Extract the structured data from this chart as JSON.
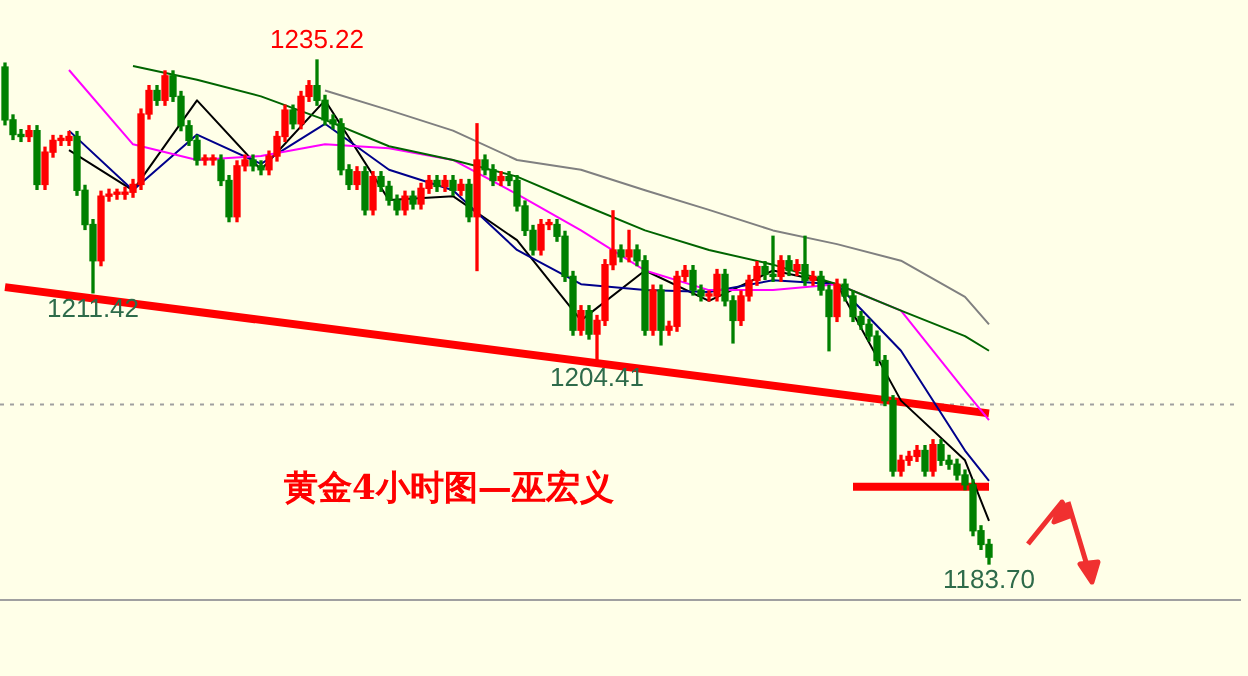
{
  "chart_data": {
    "type": "candlestick",
    "title": "黄金4小时图—巫宏义",
    "categories": [
      null,
      null,
      null,
      null,
      null,
      null,
      null,
      null,
      null,
      null,
      null,
      null,
      null,
      null,
      null,
      null,
      null,
      null,
      null,
      null,
      null,
      null,
      null,
      null,
      null,
      null,
      null,
      null,
      null,
      null,
      null,
      null,
      null,
      null,
      null,
      null,
      null,
      null,
      null,
      null,
      null,
      null,
      null,
      null,
      null,
      null,
      null,
      null,
      null,
      null,
      null,
      null,
      null,
      null,
      null,
      null,
      null,
      null,
      null,
      null,
      null,
      null,
      null,
      null,
      null,
      null,
      null,
      null,
      null,
      null,
      null,
      null,
      null,
      null,
      null,
      null,
      null,
      null,
      null,
      null,
      null,
      null,
      null,
      null,
      null,
      null,
      null,
      null,
      null,
      null,
      null,
      null,
      null,
      null,
      null,
      null,
      null,
      null,
      null,
      null,
      null,
      null,
      null,
      null,
      null,
      null,
      null,
      null,
      null,
      null,
      null,
      null,
      null,
      null,
      null,
      null,
      null,
      null,
      null,
      null,
      null,
      null,
      null,
      null
    ],
    "ohlc": [
      [
        1234.5,
        1234.9,
        1228.6,
        1229.1
      ],
      [
        1229.1,
        1229.6,
        1227.1,
        1227.6
      ],
      [
        1227.6,
        1228.1,
        1226.9,
        1227.4
      ],
      [
        1227.4,
        1228.5,
        1226.9,
        1228.0
      ],
      [
        1228.0,
        1228.5,
        1222.0,
        1222.5
      ],
      [
        1222.5,
        1226.3,
        1222.0,
        1225.8
      ],
      [
        1225.8,
        1227.5,
        1225.3,
        1227.0
      ],
      [
        1227.0,
        1227.5,
        1226.5,
        1227.0
      ],
      [
        1227.0,
        1227.9,
        1226.5,
        1227.4
      ],
      [
        1227.4,
        1227.9,
        1221.4,
        1221.9
      ],
      [
        1221.9,
        1222.4,
        1217.9,
        1218.4
      ],
      [
        1218.4,
        1218.9,
        1211.42,
        1214.7
      ],
      [
        1214.7,
        1221.8,
        1214.2,
        1221.3
      ],
      [
        1221.3,
        1222.0,
        1220.8,
        1221.5
      ],
      [
        1221.5,
        1222.0,
        1221.0,
        1221.5
      ],
      [
        1221.5,
        1222.2,
        1221.0,
        1221.7
      ],
      [
        1221.7,
        1223.0,
        1221.2,
        1222.5
      ],
      [
        1222.5,
        1230.2,
        1222.0,
        1229.7
      ],
      [
        1229.7,
        1232.6,
        1229.2,
        1232.1
      ],
      [
        1232.1,
        1232.6,
        1230.6,
        1231.1
      ],
      [
        1231.1,
        1234.1,
        1230.6,
        1233.6
      ],
      [
        1233.6,
        1234.1,
        1231.0,
        1231.5
      ],
      [
        1231.5,
        1232.0,
        1228.0,
        1228.5
      ],
      [
        1228.5,
        1229.0,
        1226.5,
        1227.0
      ],
      [
        1227.0,
        1227.5,
        1224.5,
        1225.0
      ],
      [
        1225.0,
        1225.5,
        1224.5,
        1225.0
      ],
      [
        1225.0,
        1225.5,
        1224.5,
        1225.0
      ],
      [
        1225.0,
        1225.5,
        1222.4,
        1222.9
      ],
      [
        1222.9,
        1223.4,
        1218.7,
        1219.2
      ],
      [
        1219.2,
        1224.9,
        1218.7,
        1224.4
      ],
      [
        1224.4,
        1225.5,
        1223.9,
        1225.0
      ],
      [
        1225.0,
        1225.5,
        1223.9,
        1224.4
      ],
      [
        1224.4,
        1224.9,
        1223.5,
        1224.0
      ],
      [
        1224.0,
        1225.9,
        1223.5,
        1225.4
      ],
      [
        1225.4,
        1227.9,
        1224.9,
        1227.4
      ],
      [
        1227.4,
        1230.6,
        1226.9,
        1230.1
      ],
      [
        1230.1,
        1230.6,
        1228.2,
        1228.7
      ],
      [
        1228.7,
        1232.0,
        1228.2,
        1231.5
      ],
      [
        1231.5,
        1233.1,
        1231.0,
        1232.6
      ],
      [
        1232.6,
        1235.22,
        1230.6,
        1231.1
      ],
      [
        1231.1,
        1231.6,
        1228.6,
        1229.1
      ],
      [
        1229.1,
        1229.6,
        1228.2,
        1228.7
      ],
      [
        1228.7,
        1229.2,
        1223.5,
        1224.0
      ],
      [
        1224.0,
        1224.5,
        1222.0,
        1222.5
      ],
      [
        1222.5,
        1224.3,
        1222.0,
        1223.8
      ],
      [
        1223.8,
        1224.3,
        1219.4,
        1219.9
      ],
      [
        1219.9,
        1223.8,
        1219.4,
        1223.3
      ],
      [
        1223.3,
        1223.8,
        1221.8,
        1222.3
      ],
      [
        1222.3,
        1222.8,
        1220.4,
        1220.9
      ],
      [
        1220.9,
        1221.4,
        1219.4,
        1219.9
      ],
      [
        1219.9,
        1221.8,
        1219.4,
        1221.3
      ],
      [
        1221.3,
        1221.8,
        1220.0,
        1220.5
      ],
      [
        1220.5,
        1222.6,
        1220.0,
        1222.1
      ],
      [
        1222.1,
        1223.4,
        1221.6,
        1222.9
      ],
      [
        1222.9,
        1223.4,
        1221.8,
        1222.3
      ],
      [
        1222.3,
        1223.4,
        1221.8,
        1222.9
      ],
      [
        1222.9,
        1223.4,
        1221.4,
        1221.9
      ],
      [
        1221.9,
        1223.0,
        1221.4,
        1222.5
      ],
      [
        1222.5,
        1223.0,
        1218.7,
        1219.2
      ],
      [
        1219.2,
        1228.7,
        1213.7,
        1225.0
      ],
      [
        1225.0,
        1225.5,
        1223.5,
        1224.0
      ],
      [
        1224.0,
        1224.5,
        1222.4,
        1222.9
      ],
      [
        1222.9,
        1223.8,
        1222.4,
        1223.3
      ],
      [
        1223.3,
        1223.8,
        1222.4,
        1222.9
      ],
      [
        1222.9,
        1223.4,
        1219.8,
        1220.3
      ],
      [
        1220.3,
        1220.8,
        1217.3,
        1217.8
      ],
      [
        1217.8,
        1218.3,
        1215.3,
        1215.8
      ],
      [
        1215.8,
        1218.9,
        1215.3,
        1218.4
      ],
      [
        1218.4,
        1218.9,
        1217.9,
        1218.4
      ],
      [
        1218.4,
        1218.9,
        1216.7,
        1217.2
      ],
      [
        1217.2,
        1217.7,
        1212.6,
        1213.1
      ],
      [
        1213.1,
        1213.6,
        1207.1,
        1207.6
      ],
      [
        1207.6,
        1210.1,
        1207.1,
        1209.6
      ],
      [
        1209.6,
        1210.1,
        1206.7,
        1207.2
      ],
      [
        1207.2,
        1209.1,
        1204.41,
        1208.6
      ],
      [
        1208.6,
        1214.8,
        1208.1,
        1214.3
      ],
      [
        1214.3,
        1219.8,
        1213.8,
        1215.8
      ],
      [
        1215.8,
        1216.3,
        1214.6,
        1215.1
      ],
      [
        1215.1,
        1217.8,
        1214.6,
        1215.8
      ],
      [
        1215.8,
        1216.3,
        1214.2,
        1214.7
      ],
      [
        1214.7,
        1215.2,
        1207.1,
        1207.6
      ],
      [
        1207.6,
        1212.2,
        1207.1,
        1211.7
      ],
      [
        1211.7,
        1212.2,
        1206.1,
        1207.6
      ],
      [
        1207.6,
        1208.5,
        1207.1,
        1208.0
      ],
      [
        1208.0,
        1213.6,
        1207.5,
        1213.1
      ],
      [
        1213.1,
        1214.2,
        1212.6,
        1213.7
      ],
      [
        1213.7,
        1214.2,
        1211.2,
        1211.7
      ],
      [
        1211.7,
        1212.2,
        1210.6,
        1211.1
      ],
      [
        1211.1,
        1211.6,
        1210.6,
        1211.1
      ],
      [
        1211.1,
        1213.8,
        1210.6,
        1213.3
      ],
      [
        1213.3,
        1213.8,
        1210.1,
        1210.6
      ],
      [
        1210.6,
        1211.1,
        1206.3,
        1208.6
      ],
      [
        1208.6,
        1211.6,
        1208.1,
        1211.1
      ],
      [
        1211.1,
        1213.2,
        1210.6,
        1212.7
      ],
      [
        1212.7,
        1214.6,
        1212.2,
        1214.1
      ],
      [
        1214.1,
        1214.6,
        1212.8,
        1213.3
      ],
      [
        1213.3,
        1217.2,
        1212.6,
        1213.1
      ],
      [
        1213.1,
        1215.2,
        1212.6,
        1214.7
      ],
      [
        1214.7,
        1215.2,
        1213.2,
        1213.7
      ],
      [
        1213.7,
        1214.8,
        1213.2,
        1214.3
      ],
      [
        1214.3,
        1217.2,
        1212.2,
        1212.7
      ],
      [
        1212.7,
        1213.6,
        1212.2,
        1213.1
      ],
      [
        1213.1,
        1213.6,
        1211.2,
        1211.7
      ],
      [
        1211.7,
        1212.2,
        1205.5,
        1209.0
      ],
      [
        1209.0,
        1212.8,
        1208.5,
        1212.3
      ],
      [
        1212.3,
        1212.8,
        1210.6,
        1211.1
      ],
      [
        1211.1,
        1211.6,
        1208.5,
        1209.0
      ],
      [
        1209.0,
        1209.5,
        1207.7,
        1208.2
      ],
      [
        1208.2,
        1208.7,
        1206.5,
        1207.0
      ],
      [
        1207.0,
        1207.5,
        1204.0,
        1204.5
      ],
      [
        1204.5,
        1205.0,
        1199.9,
        1200.4
      ],
      [
        1200.4,
        1200.9,
        1192.7,
        1193.2
      ],
      [
        1193.2,
        1194.8,
        1192.7,
        1194.3
      ],
      [
        1194.3,
        1195.2,
        1193.8,
        1194.7
      ],
      [
        1194.7,
        1195.8,
        1194.2,
        1195.3
      ],
      [
        1195.3,
        1195.8,
        1192.7,
        1193.2
      ],
      [
        1193.2,
        1196.4,
        1192.7,
        1195.9
      ],
      [
        1195.9,
        1196.4,
        1193.8,
        1194.3
      ],
      [
        1194.3,
        1194.8,
        1193.4,
        1193.9
      ],
      [
        1193.9,
        1194.4,
        1192.3,
        1192.8
      ],
      [
        1192.8,
        1193.3,
        1191.3,
        1191.8
      ],
      [
        1191.8,
        1192.3,
        1186.6,
        1187.1
      ],
      [
        1187.1,
        1187.6,
        1185.2,
        1185.7
      ],
      [
        1185.7,
        1186.2,
        1183.7,
        1184.4
      ]
    ],
    "colors": [
      "#008000",
      "#008000",
      "#008000",
      "#ff0000",
      "#008000",
      "#ff0000",
      "#ff0000",
      "#ff0000",
      "#ff0000",
      "#008000",
      "#008000",
      "#008000",
      "#ff0000",
      "#ff0000",
      "#ff0000",
      "#ff0000",
      "#ff0000",
      "#ff0000",
      "#ff0000",
      "#008000",
      "#ff0000",
      "#008000",
      "#008000",
      "#008000",
      "#008000",
      "#ff0000",
      "#ff0000",
      "#008000",
      "#008000",
      "#ff0000",
      "#ff0000",
      "#008000",
      "#008000",
      "#ff0000",
      "#ff0000",
      "#ff0000",
      "#008000",
      "#ff0000",
      "#ff0000",
      "#008000",
      "#008000",
      "#008000",
      "#008000",
      "#008000",
      "#ff0000",
      "#008000",
      "#ff0000",
      "#008000",
      "#008000",
      "#008000",
      "#ff0000",
      "#008000",
      "#ff0000",
      "#ff0000",
      "#008000",
      "#ff0000",
      "#008000",
      "#ff0000",
      "#008000",
      "#ff0000",
      "#008000",
      "#008000",
      "#ff0000",
      "#008000",
      "#008000",
      "#008000",
      "#008000",
      "#ff0000",
      "#ff0000",
      "#008000",
      "#008000",
      "#008000",
      "#ff0000",
      "#008000",
      "#ff0000",
      "#ff0000",
      "#ff0000",
      "#008000",
      "#ff0000",
      "#008000",
      "#008000",
      "#ff0000",
      "#008000",
      "#ff0000",
      "#ff0000",
      "#ff0000",
      "#008000",
      "#008000",
      "#ff0000",
      "#ff0000",
      "#008000",
      "#008000",
      "#ff0000",
      "#ff0000",
      "#ff0000",
      "#008000",
      "#008000",
      "#ff0000",
      "#008000",
      "#ff0000",
      "#008000",
      "#ff0000",
      "#008000",
      "#008000",
      "#ff0000",
      "#008000",
      "#008000",
      "#008000",
      "#008000",
      "#008000",
      "#008000",
      "#008000",
      "#ff0000",
      "#ff0000",
      "#ff0000",
      "#008000",
      "#ff0000",
      "#008000",
      "#008000",
      "#008000",
      "#008000",
      "#008000",
      "#008000",
      "#008000"
    ],
    "series": [
      {
        "type": "line",
        "color": "#808080",
        "values": [
          null,
          null,
          null,
          null,
          null,
          null,
          null,
          null,
          null,
          null,
          null,
          null,
          null,
          null,
          null,
          null,
          null,
          null,
          null,
          null,
          null,
          null,
          null,
          null,
          null,
          null,
          null,
          null,
          null,
          null,
          null,
          null,
          null,
          null,
          null,
          null,
          null,
          null,
          null,
          null,
          1232.1,
          null,
          null,
          null,
          null,
          null,
          null,
          null,
          1230.1,
          null,
          null,
          null,
          null,
          null,
          null,
          null,
          1228.0,
          null,
          null,
          null,
          null,
          null,
          null,
          null,
          1225.0,
          null,
          null,
          null,
          null,
          null,
          null,
          null,
          1224.0,
          null,
          null,
          null,
          null,
          null,
          null,
          null,
          1221.9,
          null,
          null,
          null,
          null,
          null,
          null,
          null,
          1219.9,
          null,
          null,
          null,
          null,
          null,
          null,
          null,
          1217.8,
          null,
          null,
          null,
          null,
          null,
          null,
          null,
          1216.4,
          null,
          null,
          null,
          null,
          null,
          null,
          null,
          1214.7,
          null,
          null,
          null,
          null,
          null,
          null,
          null,
          1211.0,
          null,
          null,
          1208.2
        ]
      },
      {
        "type": "line",
        "color": "#006400",
        "values": [
          null,
          null,
          null,
          null,
          null,
          null,
          null,
          null,
          null,
          null,
          null,
          null,
          null,
          null,
          null,
          null,
          1234.6,
          null,
          null,
          null,
          null,
          null,
          null,
          null,
          1233.2,
          null,
          null,
          null,
          null,
          null,
          null,
          null,
          1231.5,
          null,
          null,
          null,
          null,
          null,
          null,
          null,
          1229.1,
          null,
          null,
          null,
          null,
          null,
          null,
          null,
          1226.4,
          null,
          null,
          null,
          null,
          null,
          null,
          null,
          1225.0,
          null,
          null,
          null,
          null,
          null,
          null,
          null,
          1223.3,
          null,
          null,
          null,
          null,
          null,
          null,
          null,
          1220.5,
          null,
          null,
          null,
          null,
          null,
          null,
          null,
          1217.8,
          null,
          null,
          null,
          null,
          null,
          null,
          null,
          1215.8,
          null,
          null,
          null,
          null,
          null,
          null,
          null,
          1214.3,
          null,
          null,
          null,
          null,
          null,
          null,
          null,
          1212.3,
          null,
          null,
          null,
          null,
          null,
          null,
          null,
          1209.6,
          null,
          null,
          null,
          null,
          null,
          null,
          null,
          1207.0,
          null,
          null,
          1205.5
        ]
      },
      {
        "type": "line",
        "color": "#ff00ff",
        "values": [
          null,
          null,
          null,
          null,
          null,
          null,
          null,
          null,
          1234.2,
          null,
          null,
          null,
          null,
          null,
          null,
          null,
          1226.6,
          null,
          null,
          null,
          null,
          null,
          null,
          null,
          1225.0,
          null,
          null,
          null,
          null,
          null,
          null,
          null,
          1225.4,
          null,
          null,
          null,
          null,
          null,
          null,
          null,
          1226.6,
          null,
          null,
          null,
          null,
          null,
          null,
          null,
          1226.2,
          null,
          null,
          null,
          null,
          null,
          null,
          null,
          1225.0,
          null,
          null,
          null,
          null,
          null,
          null,
          null,
          1221.5,
          null,
          null,
          null,
          null,
          null,
          null,
          null,
          1217.8,
          null,
          null,
          null,
          null,
          null,
          null,
          null,
          1213.7,
          null,
          null,
          null,
          null,
          null,
          null,
          null,
          1211.7,
          null,
          null,
          null,
          null,
          null,
          null,
          null,
          1211.7,
          null,
          null,
          null,
          null,
          null,
          null,
          null,
          1212.3,
          null,
          null,
          null,
          null,
          null,
          null,
          null,
          1209.6,
          null,
          null,
          null,
          null,
          null,
          null,
          null,
          1201.4,
          null,
          null,
          1198.4
        ]
      },
      {
        "type": "line",
        "color": "#00008b",
        "values": [
          null,
          null,
          null,
          null,
          null,
          null,
          null,
          null,
          1228.0,
          null,
          null,
          null,
          null,
          null,
          null,
          null,
          1221.9,
          null,
          null,
          null,
          null,
          null,
          null,
          null,
          1227.6,
          null,
          null,
          null,
          null,
          null,
          null,
          null,
          1224.6,
          null,
          null,
          null,
          null,
          null,
          null,
          null,
          1228.7,
          null,
          null,
          null,
          null,
          null,
          null,
          null,
          1224.0,
          null,
          null,
          null,
          null,
          null,
          null,
          null,
          1221.9,
          null,
          null,
          null,
          null,
          null,
          null,
          null,
          1215.8,
          null,
          null,
          null,
          null,
          null,
          null,
          null,
          1212.3,
          null,
          null,
          null,
          null,
          null,
          null,
          null,
          1211.7,
          null,
          null,
          null,
          null,
          null,
          null,
          null,
          1211.5,
          null,
          null,
          null,
          null,
          null,
          null,
          null,
          1212.7,
          null,
          null,
          null,
          null,
          null,
          null,
          null,
          1212.3,
          null,
          null,
          null,
          null,
          null,
          null,
          null,
          1205.5,
          null,
          null,
          null,
          null,
          null,
          null,
          null,
          1195.3,
          null,
          null,
          1192.2
        ]
      },
      {
        "type": "line",
        "color": "#000000",
        "values": [
          null,
          null,
          null,
          null,
          null,
          null,
          null,
          null,
          1226.0,
          null,
          null,
          null,
          null,
          null,
          null,
          null,
          1221.9,
          null,
          null,
          null,
          null,
          null,
          null,
          null,
          1231.1,
          null,
          null,
          null,
          null,
          null,
          null,
          null,
          1224.0,
          null,
          null,
          null,
          null,
          null,
          null,
          null,
          1231.1,
          null,
          null,
          null,
          null,
          null,
          null,
          null,
          1220.9,
          null,
          null,
          null,
          null,
          null,
          null,
          null,
          1221.3,
          null,
          null,
          null,
          null,
          null,
          null,
          null,
          1216.8,
          null,
          null,
          null,
          null,
          null,
          null,
          null,
          1208.6,
          null,
          null,
          null,
          null,
          null,
          null,
          null,
          1213.7,
          null,
          null,
          null,
          null,
          null,
          null,
          null,
          1210.6,
          null,
          null,
          null,
          null,
          null,
          null,
          null,
          1213.7,
          null,
          null,
          null,
          null,
          null,
          null,
          null,
          1212.3,
          null,
          null,
          null,
          null,
          null,
          null,
          null,
          1200.4,
          null,
          null,
          null,
          null,
          null,
          null,
          null,
          1194.3,
          null,
          null,
          1188.1
        ]
      },
      {
        "type": "line",
        "color": "#ff0000",
        "values": [
          1212.0,
          null,
          null,
          null,
          null,
          null,
          null,
          null,
          null,
          null,
          null,
          null,
          null,
          null,
          null,
          null,
          null,
          null,
          null,
          null,
          null,
          null,
          null,
          null,
          null,
          null,
          null,
          null,
          null,
          null,
          null,
          null,
          null,
          null,
          null,
          null,
          null,
          null,
          null,
          null,
          null,
          null,
          null,
          null,
          null,
          null,
          null,
          null,
          null,
          null,
          null,
          null,
          null,
          null,
          null,
          null,
          null,
          null,
          null,
          null,
          null,
          null,
          null,
          null,
          null,
          null,
          null,
          null,
          null,
          null,
          null,
          null,
          null,
          null,
          null,
          null,
          null,
          null,
          null,
          null,
          null,
          null,
          null,
          null,
          null,
          null,
          null,
          null,
          null,
          null,
          null,
          null,
          null,
          null,
          null,
          null,
          null,
          null,
          null,
          null,
          null,
          null,
          null,
          null,
          null,
          null,
          null,
          null,
          null,
          null,
          null,
          null,
          null,
          null,
          null,
          null,
          null,
          null,
          null,
          null,
          null,
          null,
          null,
          1199.1
        ]
      },
      {
        "type": "line",
        "color": "#ff0000",
        "values": [
          null,
          null,
          null,
          null,
          null,
          null,
          null,
          null,
          null,
          null,
          null,
          null,
          null,
          null,
          null,
          null,
          null,
          null,
          null,
          null,
          null,
          null,
          null,
          null,
          null,
          null,
          null,
          null,
          null,
          null,
          null,
          null,
          null,
          null,
          null,
          null,
          null,
          null,
          null,
          null,
          null,
          null,
          null,
          null,
          null,
          null,
          null,
          null,
          null,
          null,
          null,
          null,
          null,
          null,
          null,
          null,
          null,
          null,
          null,
          null,
          null,
          null,
          null,
          null,
          null,
          null,
          null,
          null,
          null,
          null,
          null,
          null,
          null,
          null,
          null,
          null,
          null,
          null,
          null,
          null,
          null,
          null,
          null,
          null,
          null,
          null,
          null,
          null,
          null,
          null,
          null,
          null,
          null,
          null,
          null,
          null,
          null,
          null,
          null,
          null,
          null,
          null,
          null,
          null,
          null,
          null,
          1191.6,
          null,
          null,
          null,
          null,
          null,
          null,
          null,
          null,
          null,
          null,
          null,
          null,
          null,
          null,
          null,
          null,
          1191.6
        ]
      }
    ],
    "ref_lines": [
      {
        "axis": "y",
        "value": 1200.0,
        "color": "#a0a0a0",
        "line_style": "dotted"
      }
    ],
    "annotations": [
      {
        "text": "1235.22",
        "y": 1235.22
      },
      {
        "text": "1211.42",
        "y": 1211.42
      },
      {
        "text": "1204.41",
        "y": 1204.41
      },
      {
        "text": "1183.70",
        "y": 1183.7
      }
    ],
    "legend": false,
    "grid": false
  }
}
